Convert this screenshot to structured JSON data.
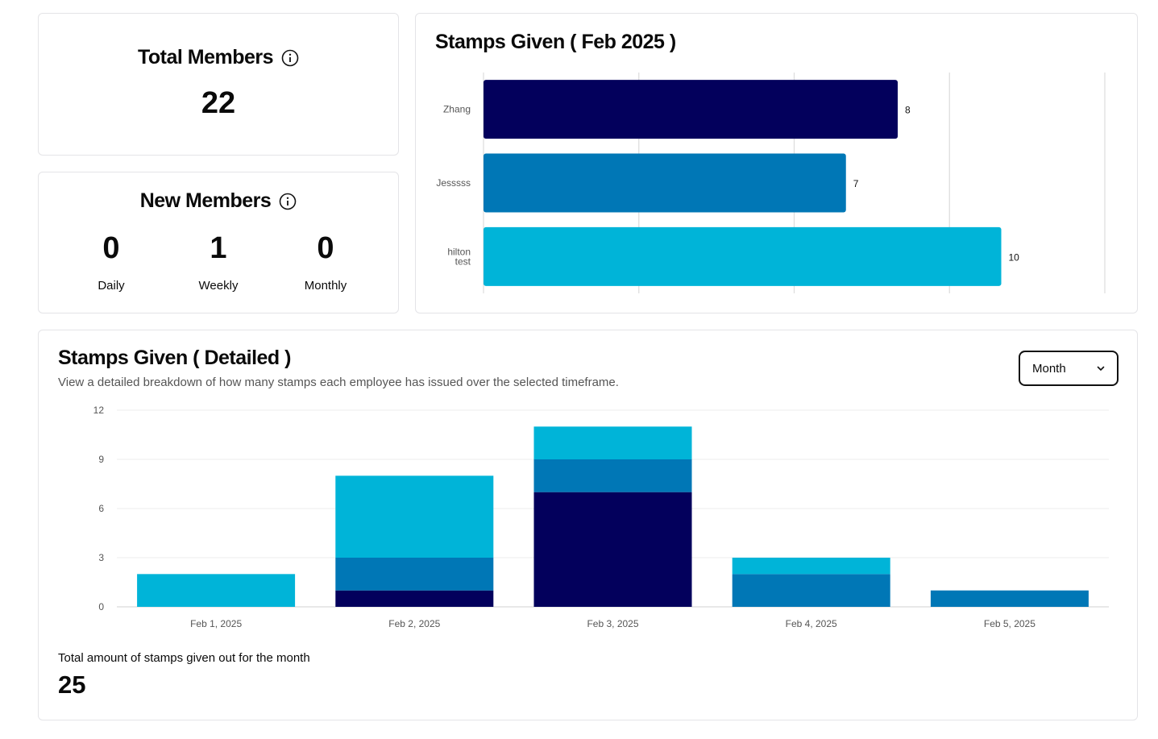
{
  "total_members": {
    "title": "Total Members",
    "value": "22"
  },
  "new_members": {
    "title": "New Members",
    "stats": [
      {
        "value": "0",
        "label": "Daily"
      },
      {
        "value": "1",
        "label": "Weekly"
      },
      {
        "value": "0",
        "label": "Monthly"
      }
    ]
  },
  "stamps_given": {
    "title": "Stamps Given ( Feb 2025 )"
  },
  "detailed": {
    "title": "Stamps Given ( Detailed )",
    "subtitle": "View a detailed breakdown of how many stamps each employee has issued over the selected timeframe.",
    "select_value": "Month",
    "total_label": "Total amount of stamps given out for the month",
    "total_value": "25"
  },
  "colors": {
    "navy": "#03005c",
    "blue": "#0077b6",
    "cyan": "#00b4d8"
  },
  "chart_data": [
    {
      "type": "bar",
      "orientation": "horizontal",
      "title": "Stamps Given ( Feb 2025 )",
      "categories": [
        "Zhang",
        "Jesssss",
        "hilton test"
      ],
      "values": [
        8,
        7,
        10
      ],
      "colors": [
        "#03005c",
        "#0077b6",
        "#00b4d8"
      ],
      "xlim": [
        0,
        12
      ],
      "grid": "vertical"
    },
    {
      "type": "bar",
      "stacked": true,
      "title": "Stamps Given ( Detailed )",
      "categories": [
        "Feb 1, 2025",
        "Feb 2, 2025",
        "Feb 3, 2025",
        "Feb 4, 2025",
        "Feb 5, 2025"
      ],
      "series": [
        {
          "color": "#03005c",
          "values": [
            0,
            1,
            7,
            0,
            0
          ]
        },
        {
          "color": "#0077b6",
          "values": [
            0,
            2,
            2,
            2,
            1
          ]
        },
        {
          "color": "#00b4d8",
          "values": [
            2,
            5,
            2,
            1,
            0
          ]
        }
      ],
      "ylim": [
        0,
        12
      ],
      "yticks": [
        0,
        3,
        6,
        9,
        12
      ],
      "grid": "horizontal"
    }
  ]
}
